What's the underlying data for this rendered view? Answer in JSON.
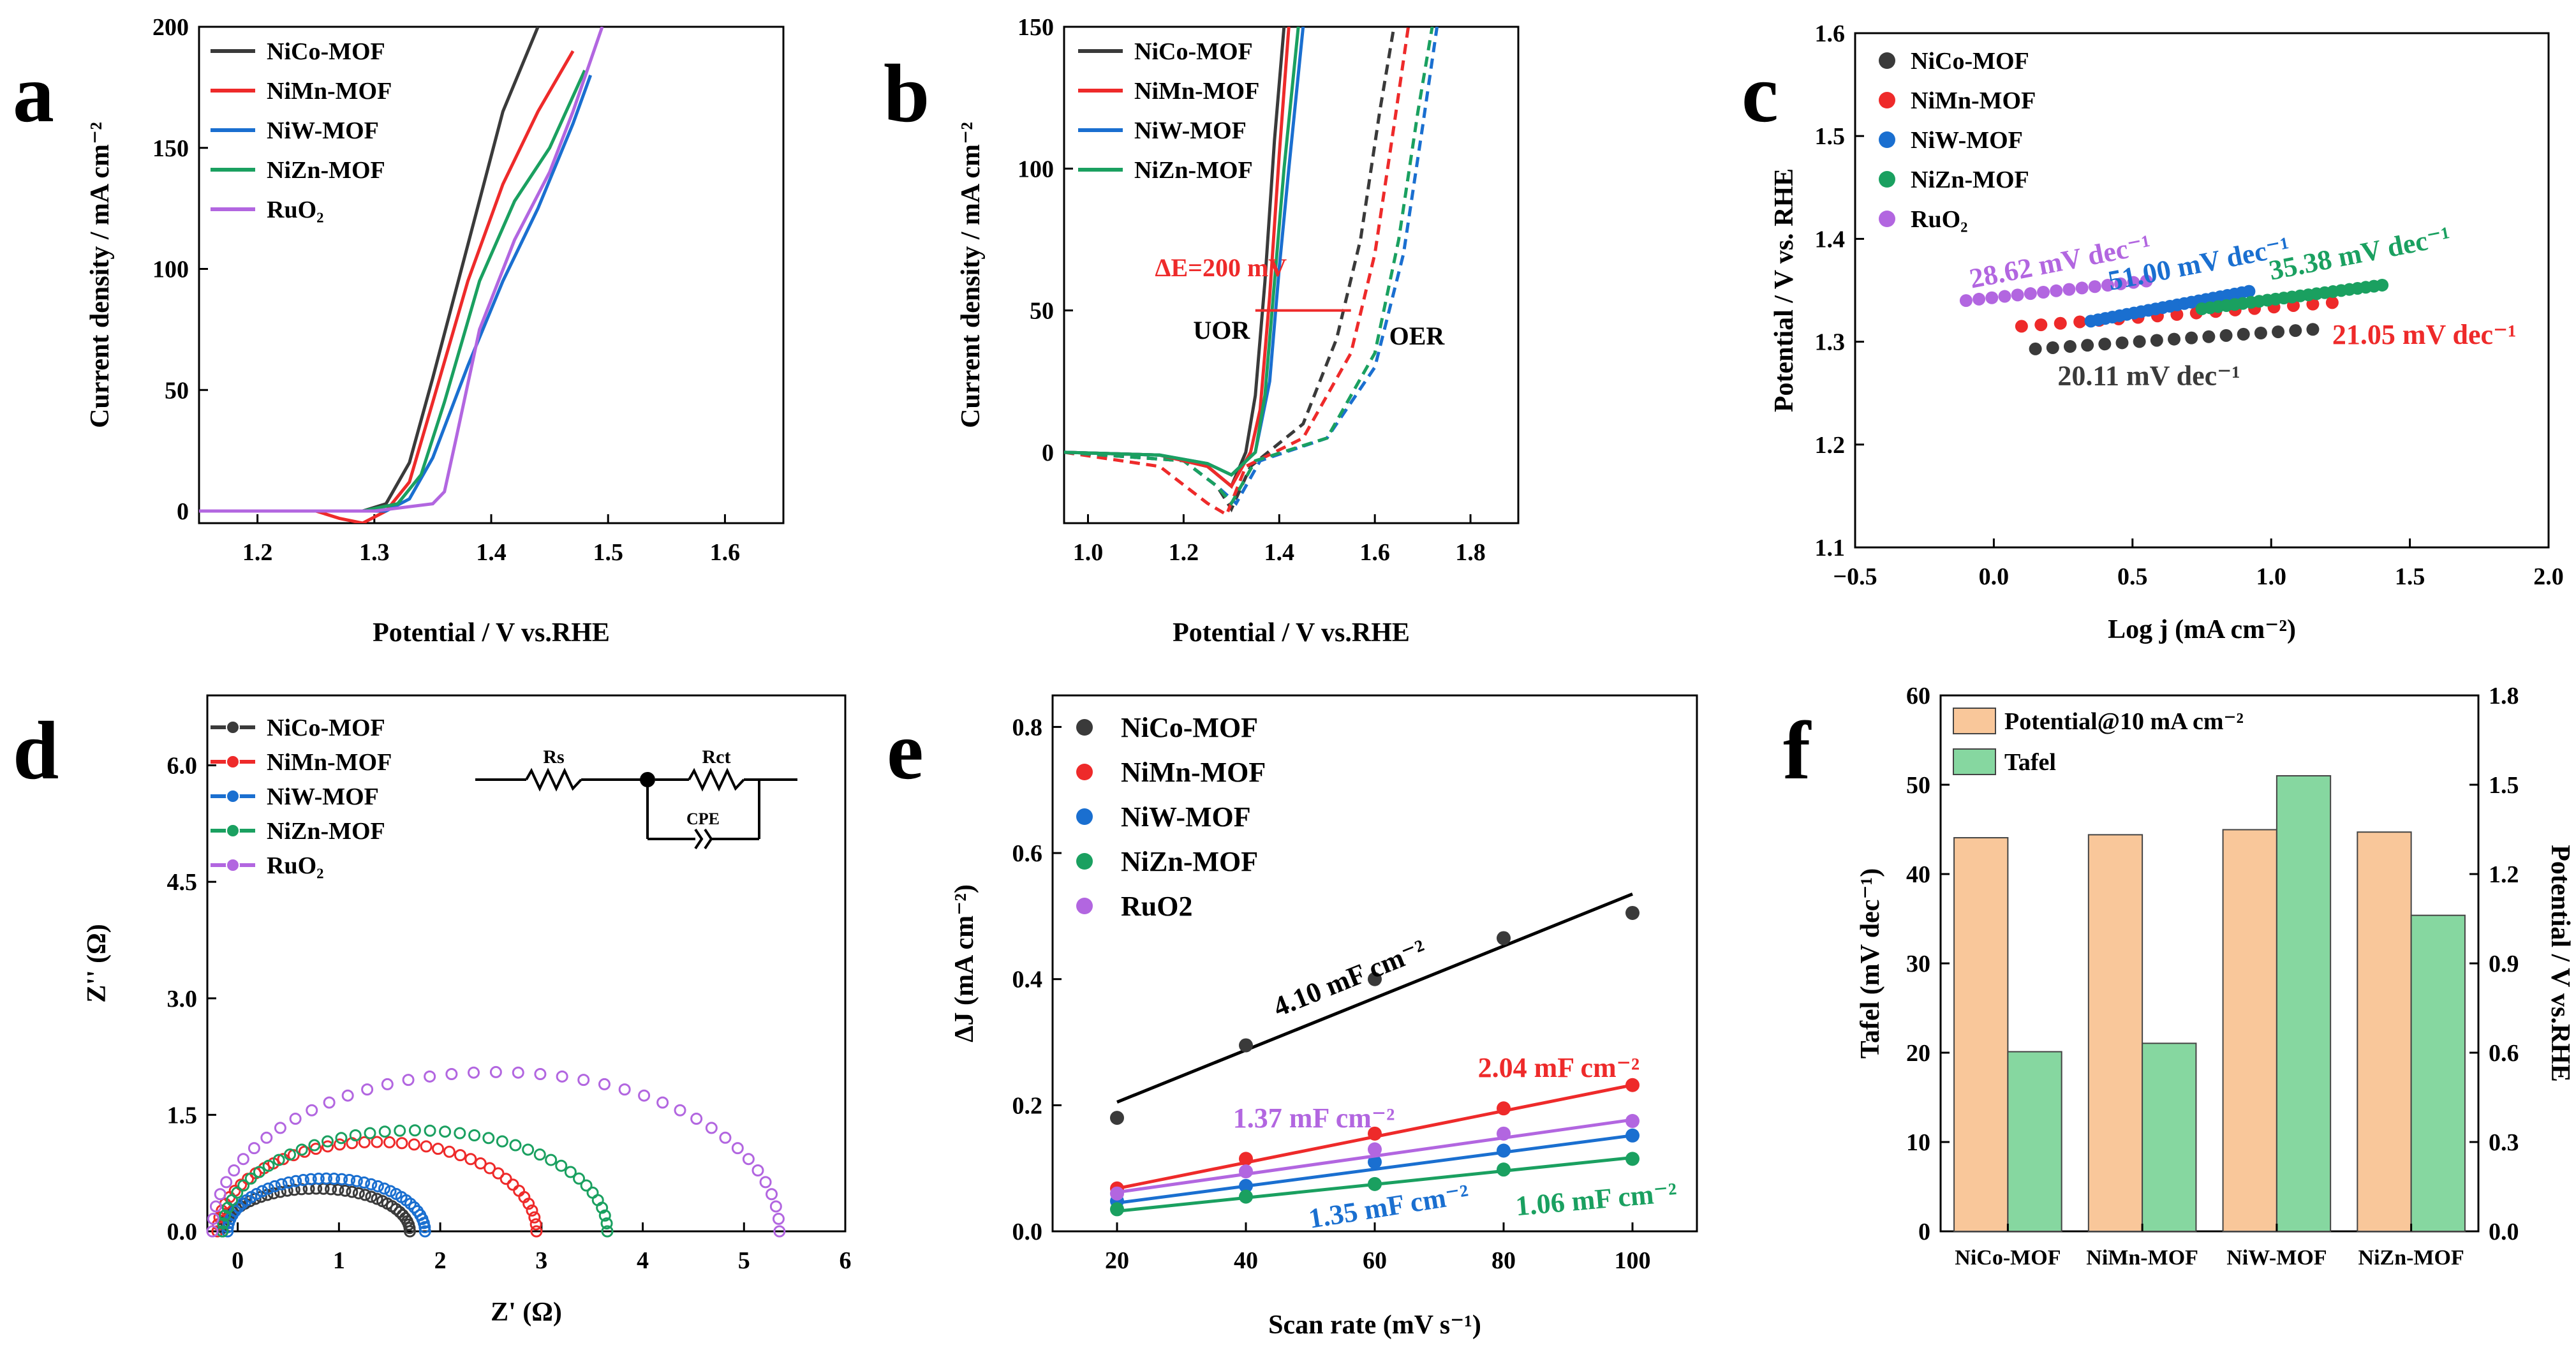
{
  "colors": {
    "NiCo": "#3a3a3a",
    "NiMn": "#ee2a2a",
    "NiW": "#1a6fd0",
    "NiZn": "#1aa060",
    "RuO2": "#b266e0",
    "black": "#000000",
    "bar_potential": "#f9c79a",
    "bar_tafel": "#86d7a0"
  },
  "chart_data": [
    {
      "panel": "a",
      "type": "line",
      "panel_label": "a",
      "xlabel": "Potential / V vs.RHE",
      "ylabel": "Current density / mA cm⁻²",
      "xlim": [
        1.15,
        1.65
      ],
      "ylim": [
        -5,
        200
      ],
      "xticks": [
        "1.2",
        "1.3",
        "1.4",
        "1.5",
        "1.6"
      ],
      "yticks": [
        "0",
        "50",
        "100",
        "150",
        "200"
      ],
      "legend": [
        "NiCo-MOF",
        "NiMn-MOF",
        "NiW-MOF",
        "NiZn-MOF",
        "RuO₂"
      ],
      "series": [
        {
          "name": "NiCo-MOF",
          "color": "NiCo",
          "x": [
            1.15,
            1.25,
            1.29,
            1.31,
            1.33,
            1.35,
            1.38,
            1.41,
            1.44
          ],
          "y": [
            0,
            0,
            0,
            3,
            20,
            55,
            110,
            165,
            200
          ]
        },
        {
          "name": "NiMn-MOF",
          "color": "NiMn",
          "x": [
            1.15,
            1.25,
            1.27,
            1.29,
            1.31,
            1.33,
            1.35,
            1.38,
            1.41,
            1.44,
            1.47
          ],
          "y": [
            0,
            0,
            -3,
            -5,
            0,
            12,
            45,
            95,
            135,
            165,
            190
          ]
        },
        {
          "name": "NiW-MOF",
          "color": "NiW",
          "x": [
            1.15,
            1.28,
            1.31,
            1.33,
            1.35,
            1.38,
            1.41,
            1.44,
            1.47,
            1.485
          ],
          "y": [
            0,
            0,
            0,
            5,
            22,
            60,
            95,
            125,
            160,
            180
          ]
        },
        {
          "name": "NiZn-MOF",
          "color": "NiZn",
          "x": [
            1.15,
            1.29,
            1.32,
            1.34,
            1.36,
            1.39,
            1.42,
            1.45,
            1.48
          ],
          "y": [
            0,
            0,
            3,
            15,
            45,
            95,
            128,
            150,
            182
          ]
        },
        {
          "name": "RuO₂",
          "color": "RuO2",
          "x": [
            1.15,
            1.3,
            1.35,
            1.36,
            1.37,
            1.39,
            1.42,
            1.45,
            1.47,
            1.495
          ],
          "y": [
            0,
            0,
            3,
            8,
            30,
            75,
            112,
            140,
            165,
            200
          ]
        }
      ]
    },
    {
      "panel": "b",
      "type": "line",
      "panel_label": "b",
      "xlabel": "Potential / V vs.RHE",
      "ylabel": "Current density / mA cm⁻²",
      "xlim": [
        0.95,
        1.9
      ],
      "ylim": [
        -25,
        150
      ],
      "xticks": [
        "1.0",
        "1.2",
        "1.4",
        "1.6",
        "1.8"
      ],
      "yticks": [
        "0",
        "50",
        "100",
        "150"
      ],
      "legend": [
        "NiCo-MOF",
        "NiMn-MOF",
        "NiW-MOF",
        "NiZn-MOF"
      ],
      "annotations": {
        "delta_e": "ΔE=200 mV",
        "uor": "UOR",
        "oer": "OER"
      },
      "delta_e_line": {
        "x": [
          1.35,
          1.55
        ],
        "y": 50
      },
      "uor_series": [
        {
          "name": "NiCo-MOF",
          "color": "NiCo",
          "x": [
            0.95,
            1.15,
            1.25,
            1.3,
            1.33,
            1.35,
            1.37,
            1.39,
            1.41
          ],
          "y": [
            0,
            -1,
            -5,
            -12,
            0,
            20,
            60,
            110,
            150
          ]
        },
        {
          "name": "NiMn-MOF",
          "color": "NiMn",
          "x": [
            0.95,
            1.15,
            1.25,
            1.3,
            1.34,
            1.36,
            1.38,
            1.4,
            1.42
          ],
          "y": [
            0,
            -1,
            -5,
            -12,
            0,
            15,
            55,
            105,
            150
          ]
        },
        {
          "name": "NiW-MOF",
          "color": "NiW",
          "x": [
            0.95,
            1.15,
            1.25,
            1.3,
            1.35,
            1.38,
            1.4,
            1.42,
            1.45
          ],
          "y": [
            0,
            -1,
            -4,
            -8,
            0,
            25,
            65,
            100,
            150
          ]
        },
        {
          "name": "NiZn-MOF",
          "color": "NiZn",
          "x": [
            0.95,
            1.15,
            1.25,
            1.3,
            1.35,
            1.37,
            1.39,
            1.41,
            1.44
          ],
          "y": [
            0,
            -1,
            -4,
            -8,
            0,
            20,
            60,
            100,
            150
          ]
        }
      ],
      "oer_series": [
        {
          "name": "NiCo-MOF",
          "color": "NiCo",
          "x": [
            0.95,
            1.2,
            1.27,
            1.3,
            1.34,
            1.45,
            1.52,
            1.57,
            1.61,
            1.64
          ],
          "y": [
            0,
            -3,
            -12,
            -20,
            -5,
            10,
            40,
            75,
            120,
            150
          ]
        },
        {
          "name": "NiMn-MOF",
          "color": "NiMn",
          "x": [
            0.95,
            1.15,
            1.25,
            1.29,
            1.33,
            1.45,
            1.55,
            1.6,
            1.64,
            1.67
          ],
          "y": [
            0,
            -5,
            -18,
            -22,
            -5,
            5,
            35,
            70,
            115,
            150
          ]
        },
        {
          "name": "NiW-MOF",
          "color": "NiW",
          "x": [
            0.95,
            1.2,
            1.27,
            1.31,
            1.36,
            1.5,
            1.6,
            1.66,
            1.7,
            1.73
          ],
          "y": [
            0,
            -3,
            -12,
            -18,
            -3,
            5,
            30,
            70,
            115,
            150
          ]
        },
        {
          "name": "NiZn-MOF",
          "color": "NiZn",
          "x": [
            0.95,
            1.2,
            1.27,
            1.3,
            1.35,
            1.5,
            1.6,
            1.65,
            1.69,
            1.72
          ],
          "y": [
            0,
            -3,
            -12,
            -18,
            -3,
            5,
            35,
            75,
            120,
            150
          ]
        }
      ]
    },
    {
      "panel": "c",
      "type": "scatter",
      "panel_label": "c",
      "xlabel": "Log j (mA cm⁻²)",
      "ylabel": "Potential / V vs. RHE",
      "xlim": [
        -0.5,
        2.0
      ],
      "ylim": [
        1.1,
        1.6
      ],
      "xticks": [
        "−0.5",
        "0.0",
        "0.5",
        "1.0",
        "1.5",
        "2.0"
      ],
      "yticks": [
        "1.1",
        "1.2",
        "1.3",
        "1.4",
        "1.5",
        "1.6"
      ],
      "legend": [
        "NiCo-MOF",
        "NiMn-MOF",
        "NiW-MOF",
        "NiZn-MOF",
        "RuO₂"
      ],
      "series": [
        {
          "name": "NiCo-MOF",
          "color": "NiCo",
          "x_start": 0.15,
          "x_end": 1.15,
          "y_start": 1.293,
          "y_end": 1.312,
          "label": "20.11 mV dec⁻¹"
        },
        {
          "name": "NiMn-MOF",
          "color": "NiMn",
          "x_start": 0.1,
          "x_end": 1.22,
          "y_start": 1.315,
          "y_end": 1.338,
          "label": "21.05 mV dec⁻¹"
        },
        {
          "name": "NiW-MOF",
          "color": "NiW",
          "x_start": 0.35,
          "x_end": 0.92,
          "y_start": 1.32,
          "y_end": 1.349,
          "label": "51.00 mV dec⁻¹"
        },
        {
          "name": "NiZn-MOF",
          "color": "NiZn",
          "x_start": 0.75,
          "x_end": 1.4,
          "y_start": 1.332,
          "y_end": 1.355,
          "label": "35.38 mV dec⁻¹"
        },
        {
          "name": "RuO₂",
          "color": "RuO2",
          "x_start": -0.1,
          "x_end": 0.55,
          "y_start": 1.34,
          "y_end": 1.359,
          "label": "28.62 mV dec⁻¹"
        }
      ]
    },
    {
      "panel": "d",
      "type": "scatter",
      "panel_label": "d",
      "xlabel": "Z' (Ω)",
      "ylabel": "Z'' (Ω)",
      "xlim": [
        -0.3,
        6
      ],
      "ylim": [
        0,
        6.9
      ],
      "xticks": [
        "0",
        "1",
        "2",
        "3",
        "4",
        "5",
        "6"
      ],
      "yticks": [
        "0.0",
        "1.5",
        "3.0",
        "4.5",
        "6.0"
      ],
      "legend": [
        "NiCo-MOF",
        "NiMn-MOF",
        "NiW-MOF",
        "NiZn-MOF",
        "RuO₂"
      ],
      "circuit": {
        "rs": "Rs",
        "rct": "Rct",
        "cpe": "CPE"
      },
      "series": [
        {
          "name": "NiCo-MOF",
          "color": "NiCo",
          "z_start": -0.15,
          "z_end": 1.7,
          "peak": 0.55
        },
        {
          "name": "NiMn-MOF",
          "color": "NiMn",
          "z_start": -0.2,
          "z_end": 2.95,
          "peak": 1.15
        },
        {
          "name": "NiW-MOF",
          "color": "NiW",
          "z_start": -0.1,
          "z_end": 1.85,
          "peak": 0.68
        },
        {
          "name": "NiZn-MOF",
          "color": "NiZn",
          "z_start": -0.15,
          "z_end": 3.65,
          "peak": 1.3
        },
        {
          "name": "RuO₂",
          "color": "RuO2",
          "z_start": -0.25,
          "z_end": 5.35,
          "peak": 2.05
        }
      ]
    },
    {
      "panel": "e",
      "type": "scatter",
      "panel_label": "e",
      "xlabel": "Scan rate (mV s⁻¹)",
      "ylabel": "ΔJ (mA cm⁻²)",
      "xlim": [
        10,
        110
      ],
      "ylim": [
        0,
        0.85
      ],
      "xticks": [
        "20",
        "40",
        "60",
        "80",
        "100"
      ],
      "yticks": [
        "0.0",
        "0.2",
        "0.4",
        "0.6",
        "0.8"
      ],
      "legend": [
        "NiCo-MOF",
        "NiMn-MOF",
        "NiW-MOF",
        "NiZn-MOF",
        "RuO2"
      ],
      "x": [
        20,
        40,
        60,
        80,
        100
      ],
      "series": [
        {
          "name": "NiCo-MOF",
          "color": "NiCo",
          "line": "black",
          "values": [
            0.18,
            0.295,
            0.4,
            0.465,
            0.505
          ],
          "fit": [
            0.205,
            0.535
          ],
          "label": "4.10 mF cm⁻²"
        },
        {
          "name": "NiMn-MOF",
          "color": "NiMn",
          "values": [
            0.068,
            0.115,
            0.155,
            0.195,
            0.232
          ],
          "fit": [
            0.068,
            0.232
          ],
          "label": "2.04 mF cm⁻²"
        },
        {
          "name": "NiW-MOF",
          "color": "NiW",
          "values": [
            0.048,
            0.072,
            0.11,
            0.128,
            0.152
          ],
          "fit": [
            0.045,
            0.152
          ],
          "label": "1.35 mF cm⁻²"
        },
        {
          "name": "NiZn-MOF",
          "color": "NiZn",
          "values": [
            0.035,
            0.055,
            0.075,
            0.098,
            0.115
          ],
          "fit": [
            0.032,
            0.117
          ],
          "label": "1.06 mF cm⁻²"
        },
        {
          "name": "RuO2",
          "color": "RuO2",
          "values": [
            0.06,
            0.095,
            0.13,
            0.155,
            0.175
          ],
          "fit": [
            0.062,
            0.177
          ],
          "label": "1.37 mF cm⁻²"
        }
      ]
    },
    {
      "panel": "f",
      "type": "bar",
      "panel_label": "f",
      "categories": [
        "NiCo-MOF",
        "NiMn-MOF",
        "NiW-MOF",
        "NiZn-MOF"
      ],
      "ylabel_left": "Tafel (mV dec⁻¹)",
      "ylabel_right": "Potential / V vs.RHE",
      "ylim_left": [
        0,
        60
      ],
      "ylim_right": [
        0,
        1.8
      ],
      "yticks_left": [
        "0",
        "10",
        "20",
        "30",
        "40",
        "50",
        "60"
      ],
      "yticks_right": [
        "0.0",
        "0.3",
        "0.6",
        "0.9",
        "1.2",
        "1.5",
        "1.8"
      ],
      "legend": [
        "Potential@10 mA cm⁻²",
        "Tafel"
      ],
      "series": [
        {
          "name": "Potential@10 mA cm⁻²",
          "axis": "right",
          "color": "bar_potential",
          "values": [
            1.322,
            1.332,
            1.349,
            1.341
          ]
        },
        {
          "name": "Tafel",
          "axis": "left",
          "color": "bar_tafel",
          "values": [
            20.11,
            21.05,
            51.0,
            35.38
          ]
        }
      ]
    }
  ]
}
